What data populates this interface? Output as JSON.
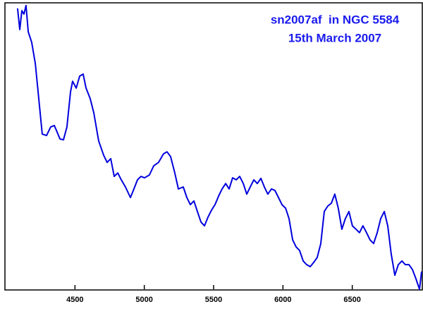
{
  "chart_data": {
    "type": "line",
    "title": "sn2007af  in NGC 5584",
    "subtitle": "15th March 2007",
    "xlim": [
      4000,
      7000
    ],
    "ylim": [
      0,
      100
    ],
    "xticks": [
      4500,
      5000,
      5500,
      6000,
      6500
    ],
    "grid": false,
    "x": [
      4086,
      4102,
      4117,
      4132,
      4147,
      4163,
      4188,
      4214,
      4239,
      4264,
      4295,
      4325,
      4351,
      4366,
      4392,
      4417,
      4442,
      4468,
      4483,
      4509,
      4534,
      4559,
      4580,
      4610,
      4636,
      4671,
      4707,
      4732,
      4758,
      4783,
      4809,
      4834,
      4864,
      4900,
      4925,
      4951,
      4976,
      5002,
      5037,
      5068,
      5103,
      5139,
      5164,
      5190,
      5220,
      5246,
      5281,
      5307,
      5332,
      5358,
      5383,
      5409,
      5434,
      5459,
      5485,
      5510,
      5536,
      5561,
      5587,
      5612,
      5637,
      5663,
      5688,
      5714,
      5739,
      5764,
      5790,
      5815,
      5841,
      5866,
      5891,
      5917,
      5942,
      5968,
      5993,
      6019,
      6044,
      6070,
      6095,
      6120,
      6146,
      6171,
      6197,
      6222,
      6247,
      6273,
      6298,
      6323,
      6349,
      6374,
      6399,
      6425,
      6450,
      6476,
      6501,
      6527,
      6552,
      6577,
      6603,
      6628,
      6654,
      6680,
      6705,
      6731,
      6756,
      6781,
      6807,
      6832,
      6858,
      6883,
      6909,
      6934,
      6959,
      6985,
      7000
    ],
    "series": [
      {
        "name": "sn2007af",
        "color": "#0000dd",
        "values": [
          98.3,
          90.9,
          97.5,
          96.3,
          99.3,
          90.1,
          86.4,
          79.0,
          66.7,
          54.3,
          53.8,
          56.8,
          57.3,
          55.6,
          52.6,
          52.3,
          56.8,
          69.1,
          72.8,
          70.4,
          74.6,
          75.3,
          70.4,
          66.7,
          61.7,
          51.9,
          46.9,
          44.4,
          45.7,
          39.5,
          40.7,
          38.3,
          35.8,
          32.1,
          35.1,
          38.3,
          39.5,
          39.0,
          40.0,
          43.2,
          44.4,
          47.4,
          48.1,
          46.4,
          40.7,
          35.1,
          35.8,
          32.1,
          29.6,
          30.9,
          27.2,
          23.5,
          22.2,
          25.2,
          27.7,
          29.6,
          32.6,
          35.1,
          37.0,
          35.1,
          39.0,
          38.3,
          39.5,
          37.0,
          33.3,
          35.8,
          38.3,
          37.0,
          38.8,
          35.8,
          33.3,
          35.1,
          34.6,
          32.1,
          29.6,
          28.4,
          24.7,
          17.3,
          14.8,
          13.6,
          9.9,
          8.6,
          7.9,
          9.4,
          11.1,
          16.0,
          27.2,
          29.1,
          30.1,
          33.3,
          28.4,
          21.0,
          24.7,
          27.2,
          22.2,
          21.0,
          19.8,
          22.2,
          19.8,
          17.3,
          16.0,
          19.8,
          24.7,
          27.2,
          22.2,
          12.3,
          4.9,
          8.6,
          9.9,
          8.6,
          8.6,
          6.9,
          3.7,
          0,
          6.2
        ]
      }
    ]
  }
}
